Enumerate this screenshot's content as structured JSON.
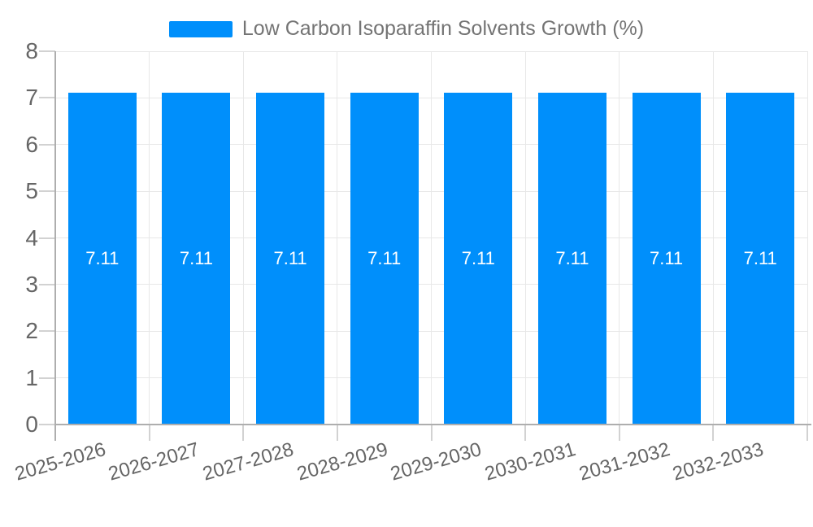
{
  "legend": {
    "label": "Low Carbon Isoparaffin Solvents Growth (%)",
    "swatch_color": "#008FFB"
  },
  "chart_data": {
    "type": "bar",
    "title": "",
    "categories": [
      "2025-2026",
      "2026-2027",
      "2027-2028",
      "2028-2029",
      "2029-2030",
      "2030-2031",
      "2031-2032",
      "2032-2033"
    ],
    "series": [
      {
        "name": "Low Carbon Isoparaffin Solvents Growth (%)",
        "values": [
          7.11,
          7.11,
          7.11,
          7.11,
          7.11,
          7.11,
          7.11,
          7.11
        ],
        "value_labels": [
          "7.11",
          "7.11",
          "7.11",
          "7.11",
          "7.11",
          "7.11",
          "7.11",
          "7.11"
        ],
        "color": "#008FFB"
      }
    ],
    "xlabel": "",
    "ylabel": "",
    "ylim": [
      0,
      8
    ],
    "yticks": [
      0,
      1,
      2,
      3,
      4,
      5,
      6,
      7,
      8
    ],
    "grid": true,
    "legend_position": "top",
    "xtick_rotation_deg": -16
  },
  "colors": {
    "bar": "#008FFB",
    "grid": "#e8e8e8",
    "axis_line": "#aeaeae",
    "tick": "#d2d2d2",
    "axis_text": "#666666",
    "legend_text": "#747474",
    "value_text": "#ffffff",
    "background": "#ffffff"
  }
}
